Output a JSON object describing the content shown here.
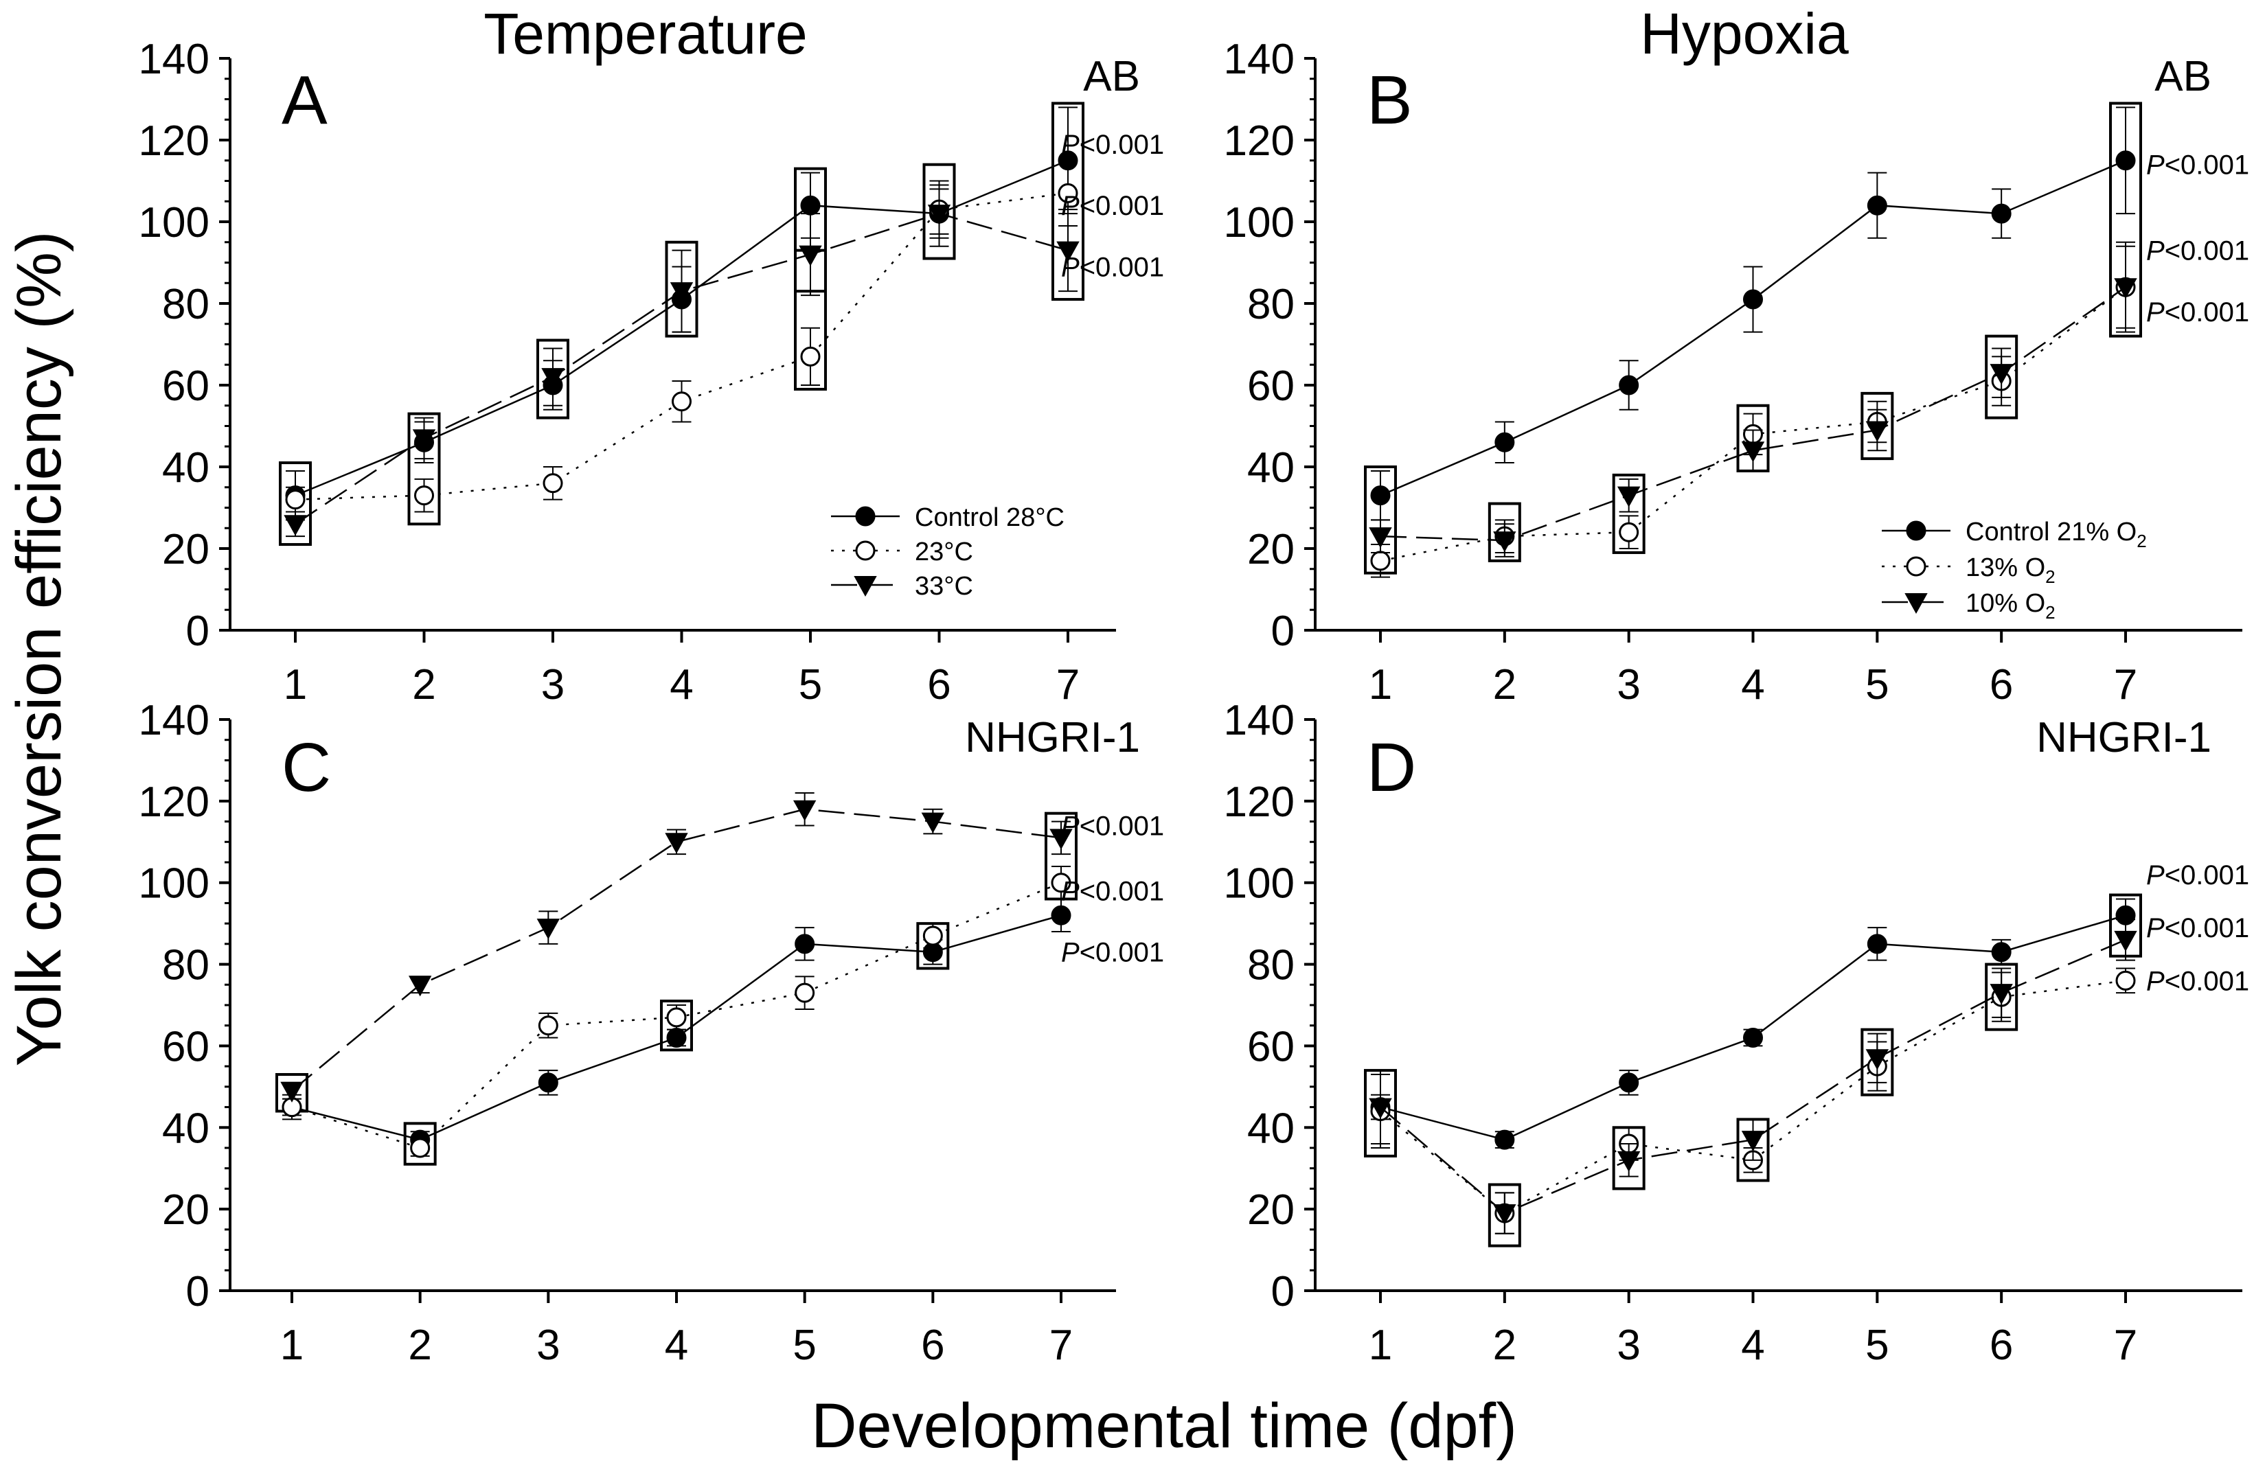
{
  "figure": {
    "ylabel": "Yolk conversion efficiency (%)",
    "xlabel": "Developmental time (dpf)",
    "column_titles": [
      "Temperature",
      "Hypoxia"
    ]
  },
  "chart_data": [
    {
      "type": "line",
      "panel": "A",
      "strain": "AB",
      "x": [
        1,
        2,
        3,
        4,
        5,
        6,
        7
      ],
      "ylim": [
        0,
        140
      ],
      "yticks": [
        0,
        20,
        40,
        60,
        80,
        100,
        120,
        140
      ],
      "legend_position": "lower-right",
      "series": [
        {
          "name": "Control 28°C",
          "marker": "filled-circle",
          "line": "solid",
          "values": [
            33,
            46,
            60,
            81,
            104,
            102,
            115
          ],
          "err": [
            6,
            5,
            6,
            8,
            8,
            6,
            13
          ]
        },
        {
          "name": "23°C",
          "marker": "open-circle",
          "line": "dotted",
          "values": [
            32,
            33,
            36,
            56,
            67,
            103,
            107
          ],
          "err": [
            3,
            4,
            4,
            5,
            7,
            6,
            8
          ]
        },
        {
          "name": "33°C",
          "marker": "filled-triangle",
          "line": "dashed",
          "values": [
            26,
            47,
            62,
            83,
            92,
            102,
            93
          ],
          "err": [
            3,
            5,
            7,
            10,
            10,
            8,
            10
          ]
        }
      ],
      "boxes": [
        {
          "x": 1,
          "y0": 21,
          "y1": 41
        },
        {
          "x": 2,
          "y0": 26,
          "y1": 53
        },
        {
          "x": 3,
          "y0": 52,
          "y1": 71
        },
        {
          "x": 4,
          "y0": 72,
          "y1": 95
        },
        {
          "x": 5,
          "y0": 83,
          "y1": 113
        },
        {
          "x": 5,
          "y0": 59,
          "y1": 93
        },
        {
          "x": 6,
          "y0": 91,
          "y1": 114
        },
        {
          "x": 7,
          "y0": 81,
          "y1": 129
        }
      ],
      "annotations": [
        {
          "text": "P<0.001",
          "y": 119
        },
        {
          "text": "P<0.001",
          "y": 104
        },
        {
          "text": "P<0.001",
          "y": 89
        }
      ]
    },
    {
      "type": "line",
      "panel": "B",
      "strain": "AB",
      "x": [
        1,
        2,
        3,
        4,
        5,
        6,
        7
      ],
      "ylim": [
        0,
        140
      ],
      "yticks": [
        0,
        20,
        40,
        60,
        80,
        100,
        120,
        140
      ],
      "legend_position": "lower-right",
      "series": [
        {
          "name": "Control 21% O2",
          "marker": "filled-circle",
          "line": "solid",
          "values": [
            33,
            46,
            60,
            81,
            104,
            102,
            115
          ],
          "err": [
            6,
            5,
            6,
            8,
            8,
            6,
            13
          ]
        },
        {
          "name": "13% O2",
          "marker": "open-circle",
          "line": "dotted",
          "values": [
            17,
            23,
            24,
            48,
            51,
            61,
            84
          ],
          "err": [
            4,
            4,
            4,
            5,
            5,
            6,
            10
          ]
        },
        {
          "name": "10% O2",
          "marker": "filled-triangle",
          "line": "dashed",
          "values": [
            23,
            22,
            33,
            44,
            49,
            63,
            84
          ],
          "err": [
            4,
            4,
            4,
            5,
            5,
            6,
            11
          ]
        }
      ],
      "boxes": [
        {
          "x": 1,
          "y0": 14,
          "y1": 40
        },
        {
          "x": 2,
          "y0": 17,
          "y1": 31
        },
        {
          "x": 3,
          "y0": 19,
          "y1": 38
        },
        {
          "x": 4,
          "y0": 39,
          "y1": 55
        },
        {
          "x": 5,
          "y0": 42,
          "y1": 58
        },
        {
          "x": 6,
          "y0": 52,
          "y1": 72
        },
        {
          "x": 7,
          "y0": 72,
          "y1": 129
        }
      ],
      "annotations": [
        {
          "text": "P<0.001",
          "y": 114
        },
        {
          "text": "P<0.001",
          "y": 93
        },
        {
          "text": "P<0.001",
          "y": 78
        }
      ]
    },
    {
      "type": "line",
      "panel": "C",
      "strain": "NHGRI-1",
      "x": [
        1,
        2,
        3,
        4,
        5,
        6,
        7
      ],
      "ylim": [
        0,
        140
      ],
      "yticks": [
        0,
        20,
        40,
        60,
        80,
        100,
        120,
        140
      ],
      "series": [
        {
          "name": "Control 28°C",
          "marker": "filled-circle",
          "line": "solid",
          "values": [
            45,
            37,
            51,
            62,
            85,
            83,
            92
          ],
          "err": [
            3,
            2,
            3,
            2,
            4,
            3,
            4
          ]
        },
        {
          "name": "23°C",
          "marker": "open-circle",
          "line": "dotted",
          "values": [
            45,
            35,
            65,
            67,
            73,
            87,
            100
          ],
          "err": [
            2,
            2,
            3,
            3,
            4,
            3,
            4
          ]
        },
        {
          "name": "33°C",
          "marker": "filled-triangle",
          "line": "dashed",
          "values": [
            49,
            75,
            89,
            110,
            118,
            115,
            111
          ],
          "err": [
            2,
            2,
            4,
            3,
            4,
            3,
            4
          ]
        }
      ],
      "boxes": [
        {
          "x": 1,
          "y0": 44,
          "y1": 53
        },
        {
          "x": 2,
          "y0": 31,
          "y1": 41
        },
        {
          "x": 4,
          "y0": 59,
          "y1": 71
        },
        {
          "x": 6,
          "y0": 79,
          "y1": 90
        },
        {
          "x": 7,
          "y0": 96,
          "y1": 117
        }
      ],
      "annotations": [
        {
          "text": "P<0.001",
          "y": 114
        },
        {
          "text": "P<0.001",
          "y": 98
        },
        {
          "text": "P<0.001",
          "y": 83
        }
      ]
    },
    {
      "type": "line",
      "panel": "D",
      "strain": "NHGRI-1",
      "x": [
        1,
        2,
        3,
        4,
        5,
        6,
        7
      ],
      "ylim": [
        0,
        140
      ],
      "yticks": [
        0,
        20,
        40,
        60,
        80,
        100,
        120,
        140
      ],
      "series": [
        {
          "name": "Control 21% O2",
          "marker": "filled-circle",
          "line": "solid",
          "values": [
            45,
            37,
            51,
            62,
            85,
            83,
            92
          ],
          "err": [
            3,
            2,
            3,
            2,
            4,
            3,
            4
          ]
        },
        {
          "name": "13% O2",
          "marker": "open-circle",
          "line": "dotted",
          "values": [
            44,
            19,
            36,
            32,
            55,
            72,
            76
          ],
          "err": [
            9,
            5,
            4,
            3,
            6,
            6,
            3
          ]
        },
        {
          "name": "10% O2",
          "marker": "filled-triangle",
          "line": "dashed",
          "values": [
            45,
            19,
            32,
            37,
            57,
            73,
            86
          ],
          "err": [
            9,
            5,
            4,
            5,
            6,
            6,
            5
          ]
        }
      ],
      "boxes": [
        {
          "x": 1,
          "y0": 33,
          "y1": 54
        },
        {
          "x": 2,
          "y0": 11,
          "y1": 26
        },
        {
          "x": 3,
          "y0": 25,
          "y1": 40
        },
        {
          "x": 4,
          "y0": 27,
          "y1": 42
        },
        {
          "x": 5,
          "y0": 48,
          "y1": 64
        },
        {
          "x": 6,
          "y0": 64,
          "y1": 80
        },
        {
          "x": 7,
          "y0": 82,
          "y1": 97
        }
      ],
      "annotations": [
        {
          "text": "P<0.001",
          "y": 102
        },
        {
          "text": "P<0.001",
          "y": 89
        },
        {
          "text": "P<0.001",
          "y": 76
        }
      ]
    }
  ]
}
